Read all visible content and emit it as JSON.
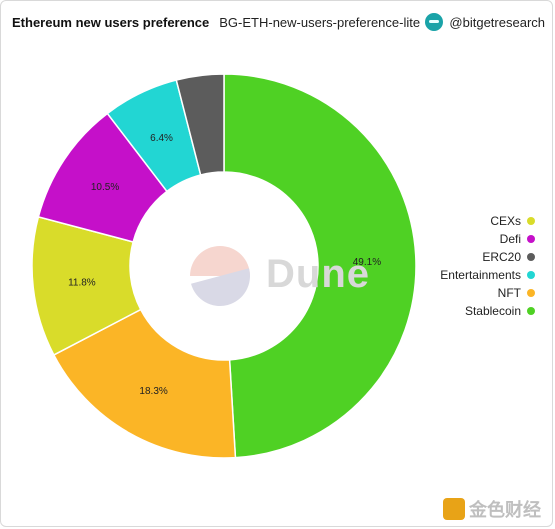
{
  "header": {
    "title": "Ethereum new users preference",
    "subtitle": "BG-ETH-new-users-preference-lite",
    "brand": "@bitgetresearch"
  },
  "watermark": "Dune",
  "footer": {
    "logo_text": "金色财经"
  },
  "chart_data": {
    "type": "pie",
    "donut": true,
    "categories": [
      "CEXs",
      "Defi",
      "ERC20",
      "Entertainments",
      "NFT",
      "Stablecoin"
    ],
    "values": [
      11.8,
      10.5,
      4.0,
      6.4,
      18.3,
      49.1
    ],
    "labels": [
      "11.8%",
      "10.5%",
      "",
      "6.4%",
      "18.3%",
      "49.1%"
    ],
    "colors": [
      "#d9dc2a",
      "#c510c9",
      "#5c5c5c",
      "#22d6d3",
      "#fbb526",
      "#4fd124"
    ],
    "draw_order": [
      "Stablecoin",
      "NFT",
      "CEXs",
      "Defi",
      "Entertainments",
      "ERC20"
    ],
    "legend_position": "right"
  }
}
